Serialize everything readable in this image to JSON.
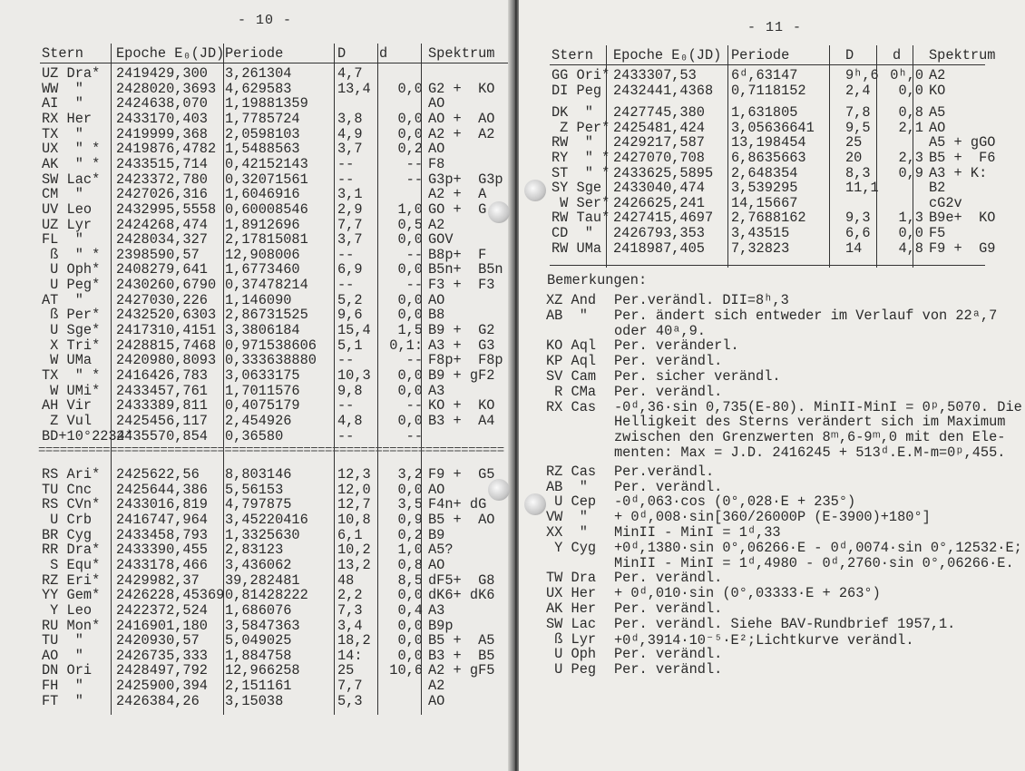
{
  "left_page": {
    "page_number": "- 10 -",
    "headers": [
      "Stern",
      "Epoche E₀(JD)",
      "Periode",
      "D",
      "d",
      "Spektrum"
    ],
    "rows_top": [
      [
        "UZ Dra*",
        "2419429,300",
        "3,261304",
        "4,7",
        "",
        ""
      ],
      [
        "WW  \"",
        "2428020,3693",
        "4,629583",
        "13,4",
        "0,0",
        "G2 +  KO"
      ],
      [
        "AI  \"",
        "2424638,070",
        "1,19881359",
        "",
        "",
        "AO"
      ],
      [
        "RX Her",
        "2433170,403",
        "1,7785724",
        "3,8",
        "0,0",
        "AO +  AO"
      ],
      [
        "TX  \"",
        "2419999,368",
        "2,0598103",
        "4,9",
        "0,0",
        "A2 +  A2"
      ],
      [
        "UX  \" *",
        "2419876,4782",
        "1,5488563",
        "3,7",
        "0,2",
        "AO"
      ],
      [
        "AK  \" *",
        "2433515,714",
        "0,42152143",
        "--",
        "--",
        "F8"
      ],
      [
        "SW Lac*",
        "2423372,780",
        "0,32071561",
        "--",
        "--",
        "G3p+  G3p"
      ],
      [
        "CM  \"",
        "2427026,316",
        "1,6046916",
        "3,1",
        "",
        "A2 +  A"
      ],
      [
        "UV Leo",
        "2432995,5558",
        "0,60008546",
        "2,9",
        "1,0",
        "GO +  G"
      ],
      [
        "UZ Lyr",
        "2424268,474",
        "1,8912696",
        "7,7",
        "0,5",
        "A2"
      ],
      [
        "FL  \"",
        "2428034,327",
        "2,17815081",
        "3,7",
        "0,0",
        "GOV"
      ],
      [
        " ß  \" *",
        "2398590,57",
        "12,908006",
        "--",
        "--",
        "B8p+  F"
      ],
      [
        " U Oph*",
        "2408279,641",
        "1,6773460",
        "6,9",
        "0,0",
        "B5n+  B5n"
      ],
      [
        " U Peg*",
        "2430260,6790",
        "0,37478214",
        "--",
        "--",
        "F3 +  F3"
      ],
      [
        "AT  \"",
        "2427030,226",
        "1,146090",
        "5,2",
        "0,0",
        "AO"
      ],
      [
        " ß Per*",
        "2432520,6303",
        "2,86731525",
        "9,6",
        "0,0",
        "B8"
      ],
      [
        " U Sge*",
        "2417310,4151",
        "3,3806184",
        "15,4",
        "1,5",
        "B9 +  G2"
      ],
      [
        " X Tri*",
        "2428815,7468",
        "0,971538606",
        "5,1",
        "0,1:",
        "A3 +  G3"
      ],
      [
        " W UMa",
        "2420980,8093",
        "0,333638880",
        "--",
        "--",
        "F8p+  F8p"
      ],
      [
        "TX  \" *",
        "2416426,783",
        "3,0633175",
        "10,3",
        "0,0",
        "B9 + gF2"
      ],
      [
        " W UMi*",
        "2433457,761",
        "1,7011576",
        "9,8",
        "0,0",
        "A3"
      ],
      [
        "AH Vir",
        "2433389,811",
        "0,4075179",
        "--",
        "--",
        "KO +  KO"
      ],
      [
        " Z Vul",
        "2425456,117",
        "2,454926",
        "4,8",
        "0,0",
        "B3 +  A4"
      ],
      [
        "BD+10°2234*",
        "2435570,854",
        "0,36580",
        "--",
        "--",
        ""
      ]
    ],
    "separator": "=================================================================",
    "rows_bottom": [
      [
        "RS Ari*",
        "2425622,56",
        "8,803146",
        "12,3",
        "3,2",
        "F9 +  G5"
      ],
      [
        "TU Cnc",
        "2425644,386",
        "5,56153",
        "12,0",
        "0,0",
        "AO"
      ],
      [
        "RS CVn*",
        "2433016,819",
        "4,797875",
        "12,7",
        "3,5",
        "F4n+ dG"
      ],
      [
        " U Crb",
        "2416747,964",
        "3,45220416",
        "10,8",
        "0,9",
        "B5 +  AO"
      ],
      [
        "BR Cyg",
        "2433458,793",
        "1,3325630",
        "6,1",
        "0,2",
        "B9"
      ],
      [
        "RR Dra*",
        "2433390,455",
        "2,83123",
        "10,2",
        "1,0",
        "A5?"
      ],
      [
        " S Equ*",
        "2433178,466",
        "3,436062",
        "13,2",
        "0,8",
        "AO"
      ],
      [
        "RZ Eri*",
        "2429982,37",
        "39,282481",
        "48",
        "8,5",
        "dF5+  G8"
      ],
      [
        "YY Gem*",
        "2426228,45369",
        "0,81428222",
        "2,2",
        "0,0",
        "dK6+ dK6"
      ],
      [
        " Y Leo",
        "2422372,524",
        "1,686076",
        "7,3",
        "0,4",
        "A3"
      ],
      [
        "RU Mon*",
        "2416901,180",
        "3,5847363",
        "3,4",
        "0,0",
        "B9p"
      ],
      [
        "TU  \"",
        "2420930,57",
        "5,049025",
        "18,2",
        "0,0",
        "B5 +  A5"
      ],
      [
        "AO  \"",
        "2426735,333",
        "1,884758",
        "14:",
        "0,0",
        "B3 +  B5"
      ],
      [
        "DN Ori",
        "2428497,792",
        "12,966258",
        "25",
        "10,6",
        "A2 + gF5"
      ],
      [
        "FH  \"",
        "2425900,394",
        "2,151161",
        "7,7",
        "",
        "A2"
      ],
      [
        "FT  \"",
        "2426384,26",
        "3,15038",
        "5,3",
        "",
        "AO"
      ]
    ]
  },
  "right_page": {
    "page_number": "- 11 -",
    "headers": [
      "Stern",
      "Epoche E₀(JD)",
      "Periode",
      "D",
      "d",
      "Spektrum"
    ],
    "rows": [
      [
        "GG Ori*",
        "2433307,53",
        "6ᵈ,63147",
        "9ʰ,6",
        "0ʰ,0",
        "A2"
      ],
      [
        "DI Peg",
        "2432441,4368",
        "0,7118152",
        "2,4",
        "0,0",
        "KO"
      ],
      [
        "DK  \"",
        "2427745,380",
        "1,631805",
        "7,8",
        "0,8",
        "A5"
      ],
      [
        " Z Per*",
        "2425481,424",
        "3,05636641",
        "9,5",
        "2,1",
        "AO"
      ],
      [
        "RW  \"",
        "2429217,587",
        "13,198454",
        "25",
        "",
        "A5 + gGO"
      ],
      [
        "RY  \" *",
        "2427070,708",
        "6,8635663",
        "20",
        "2,3",
        "B5 +  F6"
      ],
      [
        "ST  \" *",
        "2433625,5895",
        "2,648354",
        "8,3",
        "0,9",
        "A3 + K:"
      ],
      [
        "SY Sge",
        "2433040,474",
        "3,539295",
        "11,1",
        "",
        "B2"
      ],
      [
        " W Ser*",
        "2426625,241",
        "14,15667",
        "",
        "",
        "cG2v"
      ],
      [
        "RW Tau*",
        "2427415,4697",
        "2,7688162",
        "9,3",
        "1,3",
        "B9e+  KO"
      ],
      [
        "CD  \"",
        "2426793,353",
        "3,43515",
        "6,6",
        "0,0",
        "F5"
      ],
      [
        "RW UMa",
        "2418987,405",
        "7,32823",
        "14",
        "4,8",
        "F9 +  G9"
      ]
    ],
    "remarks_title": "Bemerkungen:",
    "remarks": [
      {
        "star": "XZ And",
        "lines": [
          "Per.verändl. DII=8ʰ,3"
        ]
      },
      {
        "star": "AB  \"",
        "lines": [
          "Per. ändert sich entweder im Verlauf von 22ᵃ,7",
          "oder 40ᵃ,9."
        ]
      },
      {
        "star": "KO Aql",
        "lines": [
          "Per. veränderl."
        ]
      },
      {
        "star": "KP Aql",
        "lines": [
          "Per. verändl."
        ]
      },
      {
        "star": "SV Cam",
        "lines": [
          "Per. sicher verändl."
        ]
      },
      {
        "star": " R CMa",
        "lines": [
          "Per. verändl."
        ]
      },
      {
        "star": "RX Cas",
        "lines": [
          "-0ᵈ,36·sin 0,735(E-80). MinII-MinI = 0ᵖ,5070. Die",
          "Helligkeit des Sterns verändert sich im Maximum",
          "zwischen den Grenzwerten 8ᵐ,6-9ᵐ,0 mit den Ele-",
          "menten: Max = J.D. 2416245 + 513ᵈ.E.M-m=0ᵖ,455."
        ]
      },
      {
        "star": "RZ Cas",
        "lines": [
          "Per.verändl."
        ]
      },
      {
        "star": "AB  \"",
        "lines": [
          "Per. verändl."
        ]
      },
      {
        "star": " U Cep",
        "lines": [
          "-0ᵈ,063·cos (0°,028·E + 235°)"
        ]
      },
      {
        "star": "VW  \"",
        "lines": [
          "+ 0ᵈ,008·sin[360/26000P (E-3900)+180°]"
        ]
      },
      {
        "star": "XX  \"",
        "lines": [
          "MinII - MinI = 1ᵈ,33"
        ]
      },
      {
        "star": " Y Cyg",
        "lines": [
          "+0ᵈ,1380·sin 0°,06266·E - 0ᵈ,0074·sin 0°,12532·E;",
          "MinII - MinI = 1ᵈ,4980 - 0ᵈ,2760·sin 0°,06266·E."
        ]
      },
      {
        "star": "TW Dra",
        "lines": [
          "Per. verändl."
        ]
      },
      {
        "star": "UX Her",
        "lines": [
          "+ 0ᵈ,010·sin (0°,03333·E + 263°)"
        ]
      },
      {
        "star": "AK Her",
        "lines": [
          "Per. verändl."
        ]
      },
      {
        "star": "SW Lac",
        "lines": [
          "Per. verändl. Siehe BAV-Rundbrief 1957,1."
        ]
      },
      {
        "star": " ß Lyr",
        "lines": [
          "+0ᵈ,3914·10⁻⁵·E²;Lichtkurve verändl."
        ]
      },
      {
        "star": " U Oph",
        "lines": [
          "Per. verändl."
        ]
      },
      {
        "star": " U Peg",
        "lines": [
          "Per. verändl."
        ]
      }
    ]
  }
}
